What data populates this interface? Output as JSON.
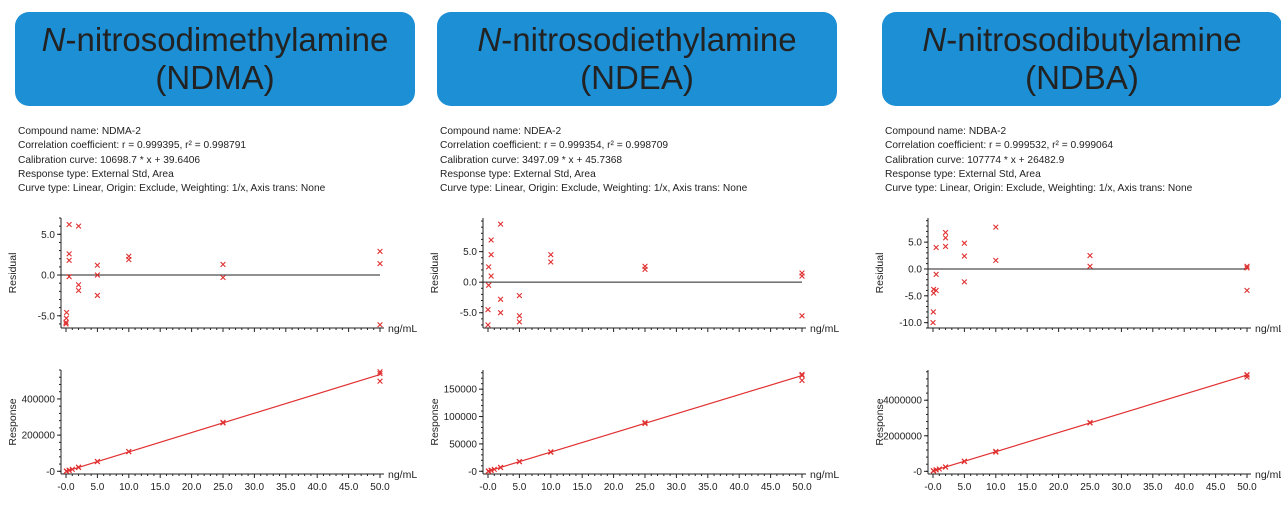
{
  "accent_color": "#1d8fd4",
  "point_color": "#e03030",
  "x_unit": "ng/mL",
  "panels": [
    {
      "title_italic": "N",
      "title_rest": "-nitrosodimethylamine",
      "title_abbr": "(NDMA)",
      "compound": "Compound name: NDMA-2",
      "correlation": "Correlation coefficient: r = 0.999395, r² = 0.998791",
      "calibration": "Calibration curve: 10698.7 * x + 39.6406",
      "response_type": "Response type: External Std, Area",
      "curve_type": "Curve type: Linear, Origin: Exclude, Weighting: 1/x, Axis trans: None"
    },
    {
      "title_italic": "N",
      "title_rest": "-nitrosodiethylamine",
      "title_abbr": "(NDEA)",
      "compound": "Compound name: NDEA-2",
      "correlation": "Correlation coefficient: r = 0.999354, r² = 0.998709",
      "calibration": "Calibration curve: 3497.09 * x + 45.7368",
      "response_type": "Response type: External Std, Area",
      "curve_type": "Curve type: Linear, Origin: Exclude, Weighting: 1/x, Axis trans: None"
    },
    {
      "title_italic": "N",
      "title_rest": "-nitrosodibutylamine",
      "title_abbr": "(NDBA)",
      "compound": "Compound name: NDBA-2",
      "correlation": "Correlation coefficient: r = 0.999532, r² = 0.999064",
      "calibration": "Calibration curve: 107774 * x + 26482.9",
      "response_type": "Response type: External Std, Area",
      "curve_type": "Curve type: Linear, Origin: Exclude, Weighting: 1/x, Axis trans: None"
    }
  ],
  "chart_data": [
    {
      "type": "scatter",
      "compound": "NDMA",
      "title": "",
      "xlabel": "ng/mL",
      "ylabel": "Residual",
      "xlim": [
        -0.5,
        50
      ],
      "ylim": [
        -6.5,
        7
      ],
      "yticks": [
        "5.0",
        "0.0",
        "-5.0"
      ],
      "ytick_values": [
        5,
        0,
        -5
      ],
      "reference_line": 0,
      "points": [
        [
          0,
          -5.8
        ],
        [
          0,
          -6.0
        ],
        [
          0.05,
          -5.3
        ],
        [
          0.1,
          -4.6
        ],
        [
          0.5,
          2.6
        ],
        [
          0.5,
          1.8
        ],
        [
          0.5,
          -0.2
        ],
        [
          0.5,
          6.2
        ],
        [
          2,
          6.0
        ],
        [
          2,
          -1.2
        ],
        [
          2,
          -1.9
        ],
        [
          5,
          1.2
        ],
        [
          5,
          0.0
        ],
        [
          5,
          -2.5
        ],
        [
          10,
          2.3
        ],
        [
          10,
          1.9
        ],
        [
          25,
          1.3
        ],
        [
          25,
          -0.3
        ],
        [
          50,
          2.9
        ],
        [
          50,
          1.4
        ],
        [
          50,
          -6.1
        ]
      ]
    },
    {
      "type": "scatter",
      "compound": "NDMA",
      "title": "",
      "xlabel": "ng/mL",
      "ylabel": "Response",
      "xlim": [
        -0.5,
        50
      ],
      "ylim": [
        -15000,
        560000
      ],
      "yticks": [
        "400000",
        "200000",
        "-0"
      ],
      "ytick_values": [
        400000,
        200000,
        0
      ],
      "xticks": [
        "-0.0",
        "5.0",
        "10.0",
        "15.0",
        "20.0",
        "25.0",
        "30.0",
        "35.0",
        "40.0",
        "45.0",
        "50.0"
      ],
      "xtick_values": [
        0,
        5,
        10,
        15,
        20,
        25,
        30,
        35,
        40,
        45,
        50
      ],
      "fit_line": {
        "slope": 10698.7,
        "intercept": 39.6406
      },
      "points": [
        [
          0.05,
          510
        ],
        [
          0.1,
          1030
        ],
        [
          0.5,
          5490
        ],
        [
          0.5,
          5350
        ],
        [
          1,
          10800
        ],
        [
          2,
          22600
        ],
        [
          2,
          21100
        ],
        [
          5,
          54500
        ],
        [
          5,
          53500
        ],
        [
          10,
          109000
        ],
        [
          10,
          108500
        ],
        [
          25,
          271000
        ],
        [
          25,
          267000
        ],
        [
          50,
          550000
        ],
        [
          50,
          540000
        ],
        [
          50,
          498000
        ]
      ]
    },
    {
      "type": "scatter",
      "compound": "NDEA",
      "title": "",
      "xlabel": "ng/mL",
      "ylabel": "Residual",
      "xlim": [
        -0.5,
        50
      ],
      "ylim": [
        -7.5,
        10.5
      ],
      "yticks": [
        "5.0",
        "0.0",
        "-5.0"
      ],
      "ytick_values": [
        5,
        0,
        -5
      ],
      "reference_line": 0,
      "points": [
        [
          0,
          -7.0
        ],
        [
          0,
          -4.5
        ],
        [
          0.1,
          -0.5
        ],
        [
          0.1,
          2.5
        ],
        [
          0.5,
          6.9
        ],
        [
          0.5,
          4.5
        ],
        [
          0.5,
          1.0
        ],
        [
          2,
          9.5
        ],
        [
          2,
          -2.8
        ],
        [
          2,
          -5.0
        ],
        [
          5,
          -2.2
        ],
        [
          5,
          -5.5
        ],
        [
          5,
          -6.5
        ],
        [
          10,
          4.5
        ],
        [
          10,
          3.3
        ],
        [
          25,
          2.6
        ],
        [
          25,
          2.1
        ],
        [
          50,
          1.5
        ],
        [
          50,
          1.0
        ],
        [
          50,
          -5.5
        ]
      ]
    },
    {
      "type": "scatter",
      "compound": "NDEA",
      "title": "",
      "xlabel": "ng/mL",
      "ylabel": "Response",
      "xlim": [
        -0.5,
        50
      ],
      "ylim": [
        -5000,
        185000
      ],
      "yticks": [
        "150000",
        "100000",
        "50000",
        "-0"
      ],
      "ytick_values": [
        150000,
        100000,
        50000,
        0
      ],
      "xticks": [
        "-0.0",
        "5.0",
        "10.0",
        "15.0",
        "20.0",
        "25.0",
        "30.0",
        "35.0",
        "40.0",
        "45.0",
        "50.0"
      ],
      "xtick_values": [
        0,
        5,
        10,
        15,
        20,
        25,
        30,
        35,
        40,
        45,
        50
      ],
      "fit_line": {
        "slope": 3497.09,
        "intercept": 45.7368
      },
      "points": [
        [
          0.05,
          220
        ],
        [
          0.1,
          395
        ],
        [
          0.5,
          1800
        ],
        [
          0.5,
          1700
        ],
        [
          1,
          3550
        ],
        [
          2,
          7000
        ],
        [
          2,
          6900
        ],
        [
          5,
          17800
        ],
        [
          5,
          17400
        ],
        [
          10,
          35500
        ],
        [
          10,
          34800
        ],
        [
          25,
          89000
        ],
        [
          25,
          87000
        ],
        [
          50,
          177000
        ],
        [
          50,
          175000
        ],
        [
          50,
          166000
        ]
      ]
    },
    {
      "type": "scatter",
      "compound": "NDBA",
      "title": "",
      "xlabel": "ng/mL",
      "ylabel": "Residual",
      "xlim": [
        -0.5,
        50
      ],
      "ylim": [
        -11,
        9.5
      ],
      "yticks": [
        "5.0",
        "0.0",
        "-5.0",
        "-10.0"
      ],
      "ytick_values": [
        5,
        0,
        -5,
        -10
      ],
      "reference_line": 0,
      "points": [
        [
          0,
          -10.0
        ],
        [
          0.05,
          -8.0
        ],
        [
          0.1,
          -4.5
        ],
        [
          0.1,
          -3.8
        ],
        [
          0.5,
          -4.0
        ],
        [
          0.5,
          -1.0
        ],
        [
          0.5,
          4.0
        ],
        [
          2,
          6.8
        ],
        [
          2,
          5.8
        ],
        [
          2,
          4.2
        ],
        [
          5,
          4.8
        ],
        [
          5,
          2.4
        ],
        [
          5,
          -2.4
        ],
        [
          10,
          7.8
        ],
        [
          10,
          1.6
        ],
        [
          25,
          2.5
        ],
        [
          25,
          0.5
        ],
        [
          50,
          0.5
        ],
        [
          50,
          0.2
        ],
        [
          50,
          -4.0
        ]
      ]
    },
    {
      "type": "scatter",
      "compound": "NDBA",
      "title": "",
      "xlabel": "ng/mL",
      "ylabel": "Response",
      "xlim": [
        -0.5,
        50
      ],
      "ylim": [
        -150000,
        5700000
      ],
      "yticks": [
        "4000000",
        "2000000",
        "-0"
      ],
      "ytick_values": [
        4000000,
        2000000,
        0
      ],
      "xticks": [
        "-0.0",
        "5.0",
        "10.0",
        "15.0",
        "20.0",
        "25.0",
        "30.0",
        "35.0",
        "40.0",
        "45.0",
        "50.0"
      ],
      "xtick_values": [
        0,
        5,
        10,
        15,
        20,
        25,
        30,
        35,
        40,
        45,
        50
      ],
      "fit_line": {
        "slope": 107774,
        "intercept": 26482.9
      },
      "points": [
        [
          0.05,
          30000
        ],
        [
          0.1,
          34000
        ],
        [
          0.5,
          90000
        ],
        [
          0.5,
          75000
        ],
        [
          1,
          130000
        ],
        [
          2,
          245000
        ],
        [
          2,
          240000
        ],
        [
          5,
          570000
        ],
        [
          5,
          550000
        ],
        [
          10,
          1120000
        ],
        [
          10,
          1080000
        ],
        [
          25,
          2750000
        ],
        [
          25,
          2720000
        ],
        [
          50,
          5440000
        ],
        [
          50,
          5420000
        ],
        [
          50,
          5300000
        ]
      ]
    }
  ]
}
